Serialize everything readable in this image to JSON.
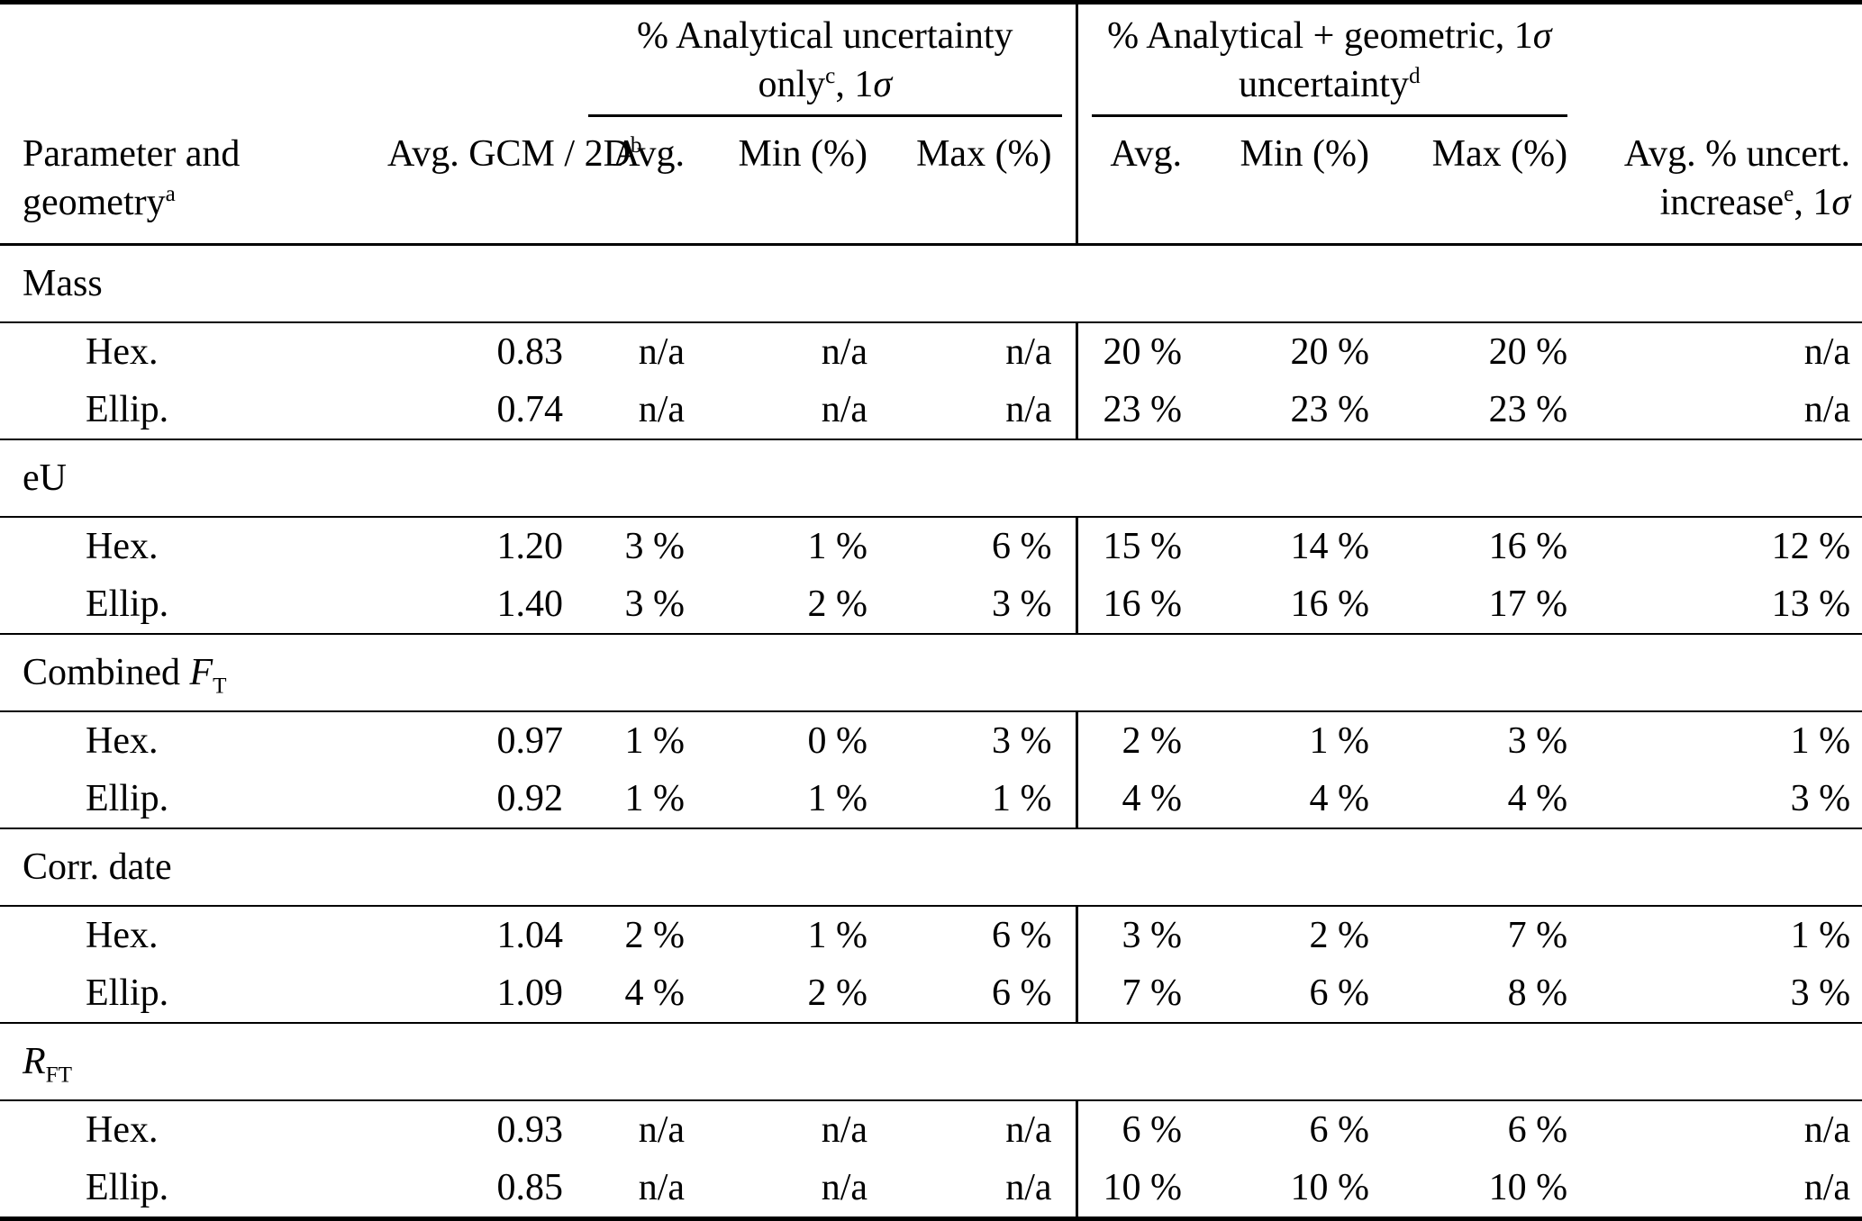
{
  "table": {
    "group_headers": {
      "analytical": {
        "line1": "% Analytical uncertainty",
        "line2_base": "only",
        "line2_sup": "c",
        "line2_sep": ", 1",
        "line2_sigma": "σ"
      },
      "geometric": {
        "line1_base": "% Analytical + geometric, 1",
        "line1_sigma": "σ",
        "line2_base": "uncertainty",
        "line2_sup": "d"
      }
    },
    "col_headers": {
      "param_line1": "Parameter and",
      "param_line2_base": "geometry",
      "param_line2_sup": "a",
      "avg_gcm_base": "Avg. GCM / 2D",
      "avg_gcm_sup": "b",
      "analytical_avg": "Avg.",
      "analytical_min": "Min (%)",
      "analytical_max": "Max (%)",
      "geometric_avg": "Avg.",
      "geometric_min": "Min (%)",
      "geometric_max": "Max (%)",
      "increase_line1": "Avg. % uncert.",
      "increase_line2_base": "increase",
      "increase_line2_sup": "e",
      "increase_line2_sep": ", 1",
      "increase_line2_sigma": "σ"
    },
    "sections": [
      {
        "label": {
          "pre": "Mass",
          "it": "",
          "sub": ""
        },
        "rows": [
          {
            "name": "Hex.",
            "avg_gcm": "0.83",
            "a_avg": "n/a",
            "a_min": "n/a",
            "a_max": "n/a",
            "g_avg": "20 %",
            "g_min": "20 %",
            "g_max": "20 %",
            "increase": "n/a"
          },
          {
            "name": "Ellip.",
            "avg_gcm": "0.74",
            "a_avg": "n/a",
            "a_min": "n/a",
            "a_max": "n/a",
            "g_avg": "23 %",
            "g_min": "23 %",
            "g_max": "23 %",
            "increase": "n/a"
          }
        ]
      },
      {
        "label": {
          "pre": "eU",
          "it": "",
          "sub": ""
        },
        "rows": [
          {
            "name": "Hex.",
            "avg_gcm": "1.20",
            "a_avg": "3 %",
            "a_min": "1 %",
            "a_max": "6 %",
            "g_avg": "15 %",
            "g_min": "14 %",
            "g_max": "16 %",
            "increase": "12 %"
          },
          {
            "name": "Ellip.",
            "avg_gcm": "1.40",
            "a_avg": "3 %",
            "a_min": "2 %",
            "a_max": "3 %",
            "g_avg": "16 %",
            "g_min": "16 %",
            "g_max": "17 %",
            "increase": "13 %"
          }
        ]
      },
      {
        "label": {
          "pre": "Combined ",
          "it": "F",
          "sub": "T"
        },
        "rows": [
          {
            "name": "Hex.",
            "avg_gcm": "0.97",
            "a_avg": "1 %",
            "a_min": "0 %",
            "a_max": "3 %",
            "g_avg": "2 %",
            "g_min": "1 %",
            "g_max": "3 %",
            "increase": "1 %"
          },
          {
            "name": "Ellip.",
            "avg_gcm": "0.92",
            "a_avg": "1 %",
            "a_min": "1 %",
            "a_max": "1 %",
            "g_avg": "4 %",
            "g_min": "4 %",
            "g_max": "4 %",
            "increase": "3 %"
          }
        ]
      },
      {
        "label": {
          "pre": "Corr. date",
          "it": "",
          "sub": ""
        },
        "rows": [
          {
            "name": "Hex.",
            "avg_gcm": "1.04",
            "a_avg": "2 %",
            "a_min": "1 %",
            "a_max": "6 %",
            "g_avg": "3 %",
            "g_min": "2 %",
            "g_max": "7 %",
            "increase": "1 %"
          },
          {
            "name": "Ellip.",
            "avg_gcm": "1.09",
            "a_avg": "4 %",
            "a_min": "2 %",
            "a_max": "6 %",
            "g_avg": "7 %",
            "g_min": "6 %",
            "g_max": "8 %",
            "increase": "3 %"
          }
        ]
      },
      {
        "label": {
          "pre": "",
          "it": "R",
          "sub": "FT"
        },
        "rows": [
          {
            "name": "Hex.",
            "avg_gcm": "0.93",
            "a_avg": "n/a",
            "a_min": "n/a",
            "a_max": "n/a",
            "g_avg": "6 %",
            "g_min": "6 %",
            "g_max": "6 %",
            "increase": "n/a"
          },
          {
            "name": "Ellip.",
            "avg_gcm": "0.85",
            "a_avg": "n/a",
            "a_min": "n/a",
            "a_max": "n/a",
            "g_avg": "10 %",
            "g_min": "10 %",
            "g_max": "10 %",
            "increase": "n/a"
          }
        ]
      }
    ]
  }
}
